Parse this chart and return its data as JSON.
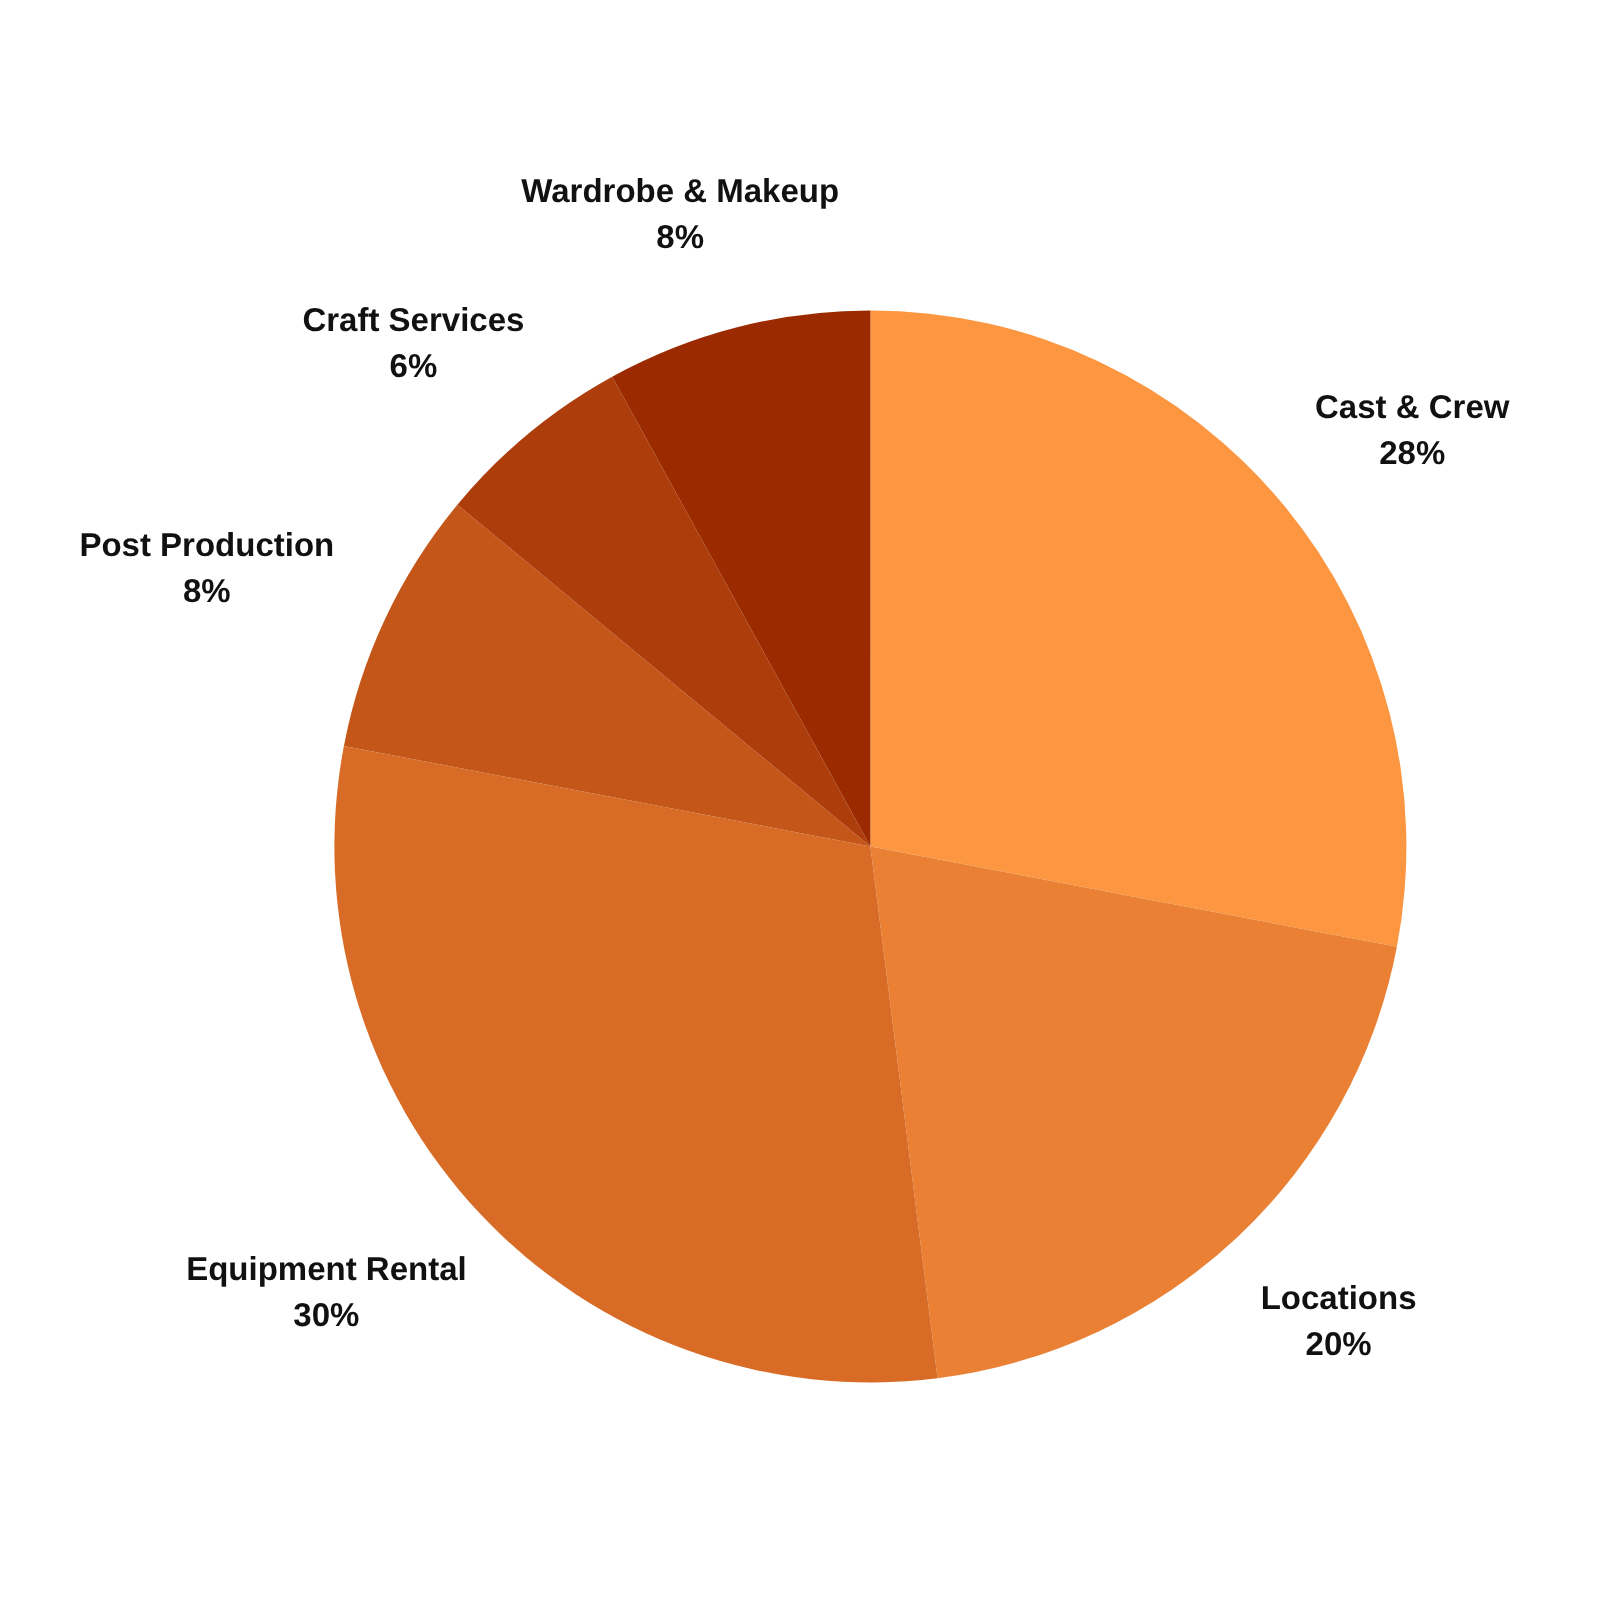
{
  "chart_data": {
    "type": "pie",
    "categories": [
      "Cast & Crew",
      "Locations",
      "Equipment Rental",
      "Post Production",
      "Craft Services",
      "Wardrobe & Makeup"
    ],
    "values": [
      28,
      20,
      30,
      8,
      6,
      8
    ],
    "value_labels": [
      "28%",
      "20%",
      "30%",
      "8%",
      "6%",
      "8%"
    ],
    "colors": [
      "#fc9640",
      "#e98033",
      "#d86b26",
      "#c4561a",
      "#ad3d0b",
      "#9b2a00"
    ],
    "legend": false
  }
}
